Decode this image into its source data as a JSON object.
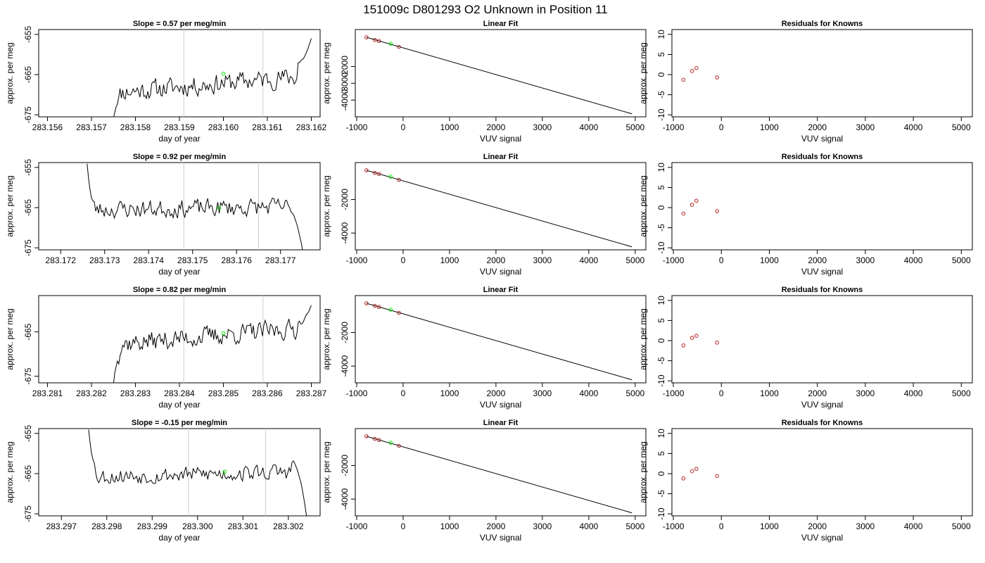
{
  "title": "151009c     D801293   O2 Unknown in Position  11",
  "chart_data": [
    {
      "type": "line",
      "title": "Slope =  0.57  per meg/min",
      "xlabel": "day of year",
      "ylabel": "approx. per meg",
      "xlim": [
        283.1558,
        283.1622
      ],
      "ylim": [
        -675.5,
        -653.8
      ],
      "xticks": [
        "283.156",
        "283.157",
        "283.158",
        "283.159",
        "283.160",
        "283.161",
        "283.162"
      ],
      "xtick_values": [
        283.156,
        283.157,
        283.158,
        283.159,
        283.16,
        283.161,
        283.162
      ],
      "yticks": [
        "-655",
        "-665",
        "-675"
      ],
      "ytick_values": [
        -655,
        -665,
        -675
      ],
      "vlines": [
        283.1591,
        283.1609
      ],
      "marker": {
        "x": 283.16,
        "y": -664.8
      },
      "trace": {
        "x_start": 283.1575,
        "x_end": 283.162,
        "start_y": -675.5,
        "level_from": -669.5,
        "level_to": -665.2,
        "noise": 2.2,
        "ramp": 0.05,
        "tail": [
          -662,
          -656
        ],
        "seed": 11
      },
      "series_color": "#000000",
      "vline_color": "#cccccc",
      "marker_color": "#00ee00"
    },
    {
      "type": "line",
      "title": "Linear Fit",
      "xlabel": "VUV signal",
      "ylabel": "approx. per meg",
      "xlim": [
        -1030,
        5230
      ],
      "ylim": [
        -5000,
        200
      ],
      "xticks": [
        "-1000",
        "0",
        "1000",
        "2000",
        "3000",
        "4000",
        "5000"
      ],
      "xtick_values": [
        -1000,
        0,
        1000,
        2000,
        3000,
        4000,
        5000
      ],
      "yticks": [
        "-2000",
        "-3000",
        "-4000"
      ],
      "ytick_values": [
        -2000,
        -3000,
        -4000
      ],
      "line": {
        "x": [
          -790,
          4930
        ],
        "y": [
          -260,
          -4820
        ]
      },
      "knowns": {
        "x": [
          -790,
          -610,
          -520,
          -90
        ],
        "y": [
          -260,
          -415,
          -480,
          -830
        ]
      },
      "unknown": {
        "x": [
          -270
        ],
        "y": [
          -640
        ]
      },
      "known_color": "#b22222",
      "unknown_color": "#00ee00"
    },
    {
      "type": "scatter",
      "title": "Residuals for Knowns",
      "xlabel": "VUV signal",
      "ylabel": "approx. per meg",
      "xlim": [
        -1030,
        5230
      ],
      "ylim": [
        -10.5,
        11.2
      ],
      "xticks": [
        "-1000",
        "0",
        "1000",
        "2000",
        "3000",
        "4000",
        "5000"
      ],
      "xtick_values": [
        -1000,
        0,
        1000,
        2000,
        3000,
        4000,
        5000
      ],
      "yticks": [
        "10",
        "5",
        "0",
        "-5",
        "-10"
      ],
      "ytick_values": [
        10,
        5,
        0,
        -5,
        -10
      ],
      "points": {
        "x": [
          -790,
          -610,
          -520,
          -90
        ],
        "y": [
          -1.3,
          0.9,
          1.6,
          -0.7
        ]
      },
      "point_color": "#b22222"
    },
    {
      "type": "line",
      "title": "Slope =  0.92  per meg/min",
      "xlabel": "day of year",
      "ylabel": "approx. per meg",
      "xlim": [
        283.1715,
        283.1779
      ],
      "ylim": [
        -675.5,
        -653.8
      ],
      "xticks": [
        "283.172",
        "283.173",
        "283.174",
        "283.175",
        "283.176",
        "283.177"
      ],
      "xtick_values": [
        283.172,
        283.173,
        283.174,
        283.175,
        283.176,
        283.177
      ],
      "yticks": [
        "-655",
        "-665",
        "-675"
      ],
      "ytick_values": [
        -655,
        -665,
        -675
      ],
      "vlines": [
        283.1748,
        283.1765
      ],
      "marker": {
        "x": 283.1756,
        "y": -665.1
      },
      "trace": {
        "x_start": 283.1726,
        "x_end": 283.1775,
        "start_y": -653.8,
        "level_from": -665.5,
        "level_to": -664.8,
        "noise": 2.0,
        "ramp": 0.04,
        "tail": [
          -665,
          -675.5
        ],
        "seed": 23
      },
      "series_color": "#000000",
      "vline_color": "#cccccc",
      "marker_color": "#00ee00"
    },
    {
      "type": "line",
      "title": "Linear Fit",
      "xlabel": "VUV signal",
      "ylabel": "approx. per meg",
      "xlim": [
        -1030,
        5230
      ],
      "ylim": [
        -5000,
        200
      ],
      "xticks": [
        "-1000",
        "0",
        "1000",
        "2000",
        "3000",
        "4000",
        "5000"
      ],
      "xtick_values": [
        -1000,
        0,
        1000,
        2000,
        3000,
        4000,
        5000
      ],
      "yticks": [
        "-2000",
        "-4000"
      ],
      "ytick_values": [
        -2000,
        -4000
      ],
      "line": {
        "x": [
          -790,
          4930
        ],
        "y": [
          -260,
          -4820
        ]
      },
      "knowns": {
        "x": [
          -790,
          -610,
          -520,
          -90
        ],
        "y": [
          -260,
          -415,
          -480,
          -830
        ]
      },
      "unknown": {
        "x": [
          -270
        ],
        "y": [
          -640
        ]
      },
      "known_color": "#b22222",
      "unknown_color": "#00ee00"
    },
    {
      "type": "scatter",
      "title": "Residuals for Knowns",
      "xlabel": "VUV signal",
      "ylabel": "approx. per meg",
      "xlim": [
        -1030,
        5230
      ],
      "ylim": [
        -10.5,
        11.2
      ],
      "xticks": [
        "-1000",
        "0",
        "1000",
        "2000",
        "3000",
        "4000",
        "5000"
      ],
      "xtick_values": [
        -1000,
        0,
        1000,
        2000,
        3000,
        4000,
        5000
      ],
      "yticks": [
        "10",
        "5",
        "0",
        "-5",
        "-10"
      ],
      "ytick_values": [
        10,
        5,
        0,
        -5,
        -10
      ],
      "points": {
        "x": [
          -790,
          -610,
          -520,
          -90
        ],
        "y": [
          -1.5,
          0.7,
          1.7,
          -0.9
        ]
      },
      "point_color": "#b22222"
    },
    {
      "type": "line",
      "title": "Slope =  0.82  per meg/min",
      "xlabel": "day of year",
      "ylabel": "approx. per meg",
      "xlim": [
        283.2808,
        283.2872
      ],
      "ylim": [
        -676.5,
        -656.8
      ],
      "xticks": [
        "283.281",
        "283.282",
        "283.283",
        "283.284",
        "283.285",
        "283.286",
        "283.287"
      ],
      "xtick_values": [
        283.281,
        283.282,
        283.283,
        283.284,
        283.285,
        283.286,
        283.287
      ],
      "yticks": [
        "-665",
        "-675"
      ],
      "ytick_values": [
        -665,
        -675
      ],
      "vlines": [
        283.2841,
        283.2859
      ],
      "marker": {
        "x": 283.285,
        "y": -665.3
      },
      "trace": {
        "x_start": 283.2825,
        "x_end": 283.287,
        "start_y": -676.5,
        "level_from": -667.8,
        "level_to": -664.0,
        "noise": 2.0,
        "ramp": 0.05,
        "tail": [
          -663,
          -659
        ],
        "seed": 37
      },
      "series_color": "#000000",
      "vline_color": "#cccccc",
      "marker_color": "#00ee00"
    },
    {
      "type": "line",
      "title": "Linear Fit",
      "xlabel": "VUV signal",
      "ylabel": "approx. per meg",
      "xlim": [
        -1030,
        5230
      ],
      "ylim": [
        -5000,
        200
      ],
      "xticks": [
        "-1000",
        "0",
        "1000",
        "2000",
        "3000",
        "4000",
        "5000"
      ],
      "xtick_values": [
        -1000,
        0,
        1000,
        2000,
        3000,
        4000,
        5000
      ],
      "yticks": [
        "-2000",
        "-4000"
      ],
      "ytick_values": [
        -2000,
        -4000
      ],
      "line": {
        "x": [
          -790,
          4930
        ],
        "y": [
          -260,
          -4820
        ]
      },
      "knowns": {
        "x": [
          -790,
          -610,
          -520,
          -90
        ],
        "y": [
          -260,
          -415,
          -480,
          -830
        ]
      },
      "unknown": {
        "x": [
          -270
        ],
        "y": [
          -640
        ]
      },
      "known_color": "#b22222",
      "unknown_color": "#00ee00"
    },
    {
      "type": "scatter",
      "title": "Residuals for Knowns",
      "xlabel": "VUV signal",
      "ylabel": "approx. per meg",
      "xlim": [
        -1030,
        5230
      ],
      "ylim": [
        -10.5,
        11.2
      ],
      "xticks": [
        "-1000",
        "0",
        "1000",
        "2000",
        "3000",
        "4000",
        "5000"
      ],
      "xtick_values": [
        -1000,
        0,
        1000,
        2000,
        3000,
        4000,
        5000
      ],
      "yticks": [
        "10",
        "5",
        "0",
        "-5",
        "-10"
      ],
      "ytick_values": [
        10,
        5,
        0,
        -5,
        -10
      ],
      "points": {
        "x": [
          -790,
          -610,
          -520,
          -90
        ],
        "y": [
          -1.2,
          0.7,
          1.2,
          -0.5
        ]
      },
      "point_color": "#b22222"
    },
    {
      "type": "line",
      "title": "Slope =  -0.15  per meg/min",
      "xlabel": "day of year",
      "ylabel": "approx. per meg",
      "xlim": [
        283.2965,
        283.3027
      ],
      "ylim": [
        -675.5,
        -653.8
      ],
      "xticks": [
        "283.297",
        "283.298",
        "283.299",
        "283.300",
        "283.301",
        "283.302"
      ],
      "xtick_values": [
        283.297,
        283.298,
        283.299,
        283.3,
        283.301,
        283.302
      ],
      "yticks": [
        "-655",
        "-665",
        "-675"
      ],
      "ytick_values": [
        -655,
        -665,
        -675
      ],
      "vlines": [
        283.2998,
        283.3015
      ],
      "marker": {
        "x": 283.3006,
        "y": -664.5
      },
      "trace": {
        "x_start": 283.2976,
        "x_end": 283.3024,
        "start_y": -653.8,
        "level_from": -665.8,
        "level_to": -664.5,
        "noise": 1.8,
        "ramp": 0.05,
        "tail": [
          -662,
          -675.5
        ],
        "seed": 53
      },
      "series_color": "#000000",
      "vline_color": "#cccccc",
      "marker_color": "#00ee00"
    },
    {
      "type": "line",
      "title": "Linear Fit",
      "xlabel": "VUV signal",
      "ylabel": "approx. per meg",
      "xlim": [
        -1030,
        5230
      ],
      "ylim": [
        -5000,
        200
      ],
      "xticks": [
        "-1000",
        "0",
        "1000",
        "2000",
        "3000",
        "4000",
        "5000"
      ],
      "xtick_values": [
        -1000,
        0,
        1000,
        2000,
        3000,
        4000,
        5000
      ],
      "yticks": [
        "-2000",
        "-4000"
      ],
      "ytick_values": [
        -2000,
        -4000
      ],
      "line": {
        "x": [
          -790,
          4930
        ],
        "y": [
          -260,
          -4820
        ]
      },
      "knowns": {
        "x": [
          -790,
          -610,
          -520,
          -90
        ],
        "y": [
          -260,
          -415,
          -480,
          -830
        ]
      },
      "unknown": {
        "x": [
          -270
        ],
        "y": [
          -640
        ]
      },
      "known_color": "#b22222",
      "unknown_color": "#00ee00"
    },
    {
      "type": "scatter",
      "title": "Residuals for Knowns",
      "xlabel": "VUV signal",
      "ylabel": "approx. per meg",
      "xlim": [
        -1030,
        5230
      ],
      "ylim": [
        -10.5,
        11.2
      ],
      "xticks": [
        "-1000",
        "0",
        "1000",
        "2000",
        "3000",
        "4000",
        "5000"
      ],
      "xtick_values": [
        -1000,
        0,
        1000,
        2000,
        3000,
        4000,
        5000
      ],
      "yticks": [
        "10",
        "5",
        "0",
        "-5",
        "-10"
      ],
      "ytick_values": [
        10,
        5,
        0,
        -5,
        -10
      ],
      "points": {
        "x": [
          -790,
          -610,
          -520,
          -90
        ],
        "y": [
          -1.2,
          0.6,
          1.2,
          -0.6
        ]
      },
      "point_color": "#b22222"
    }
  ]
}
